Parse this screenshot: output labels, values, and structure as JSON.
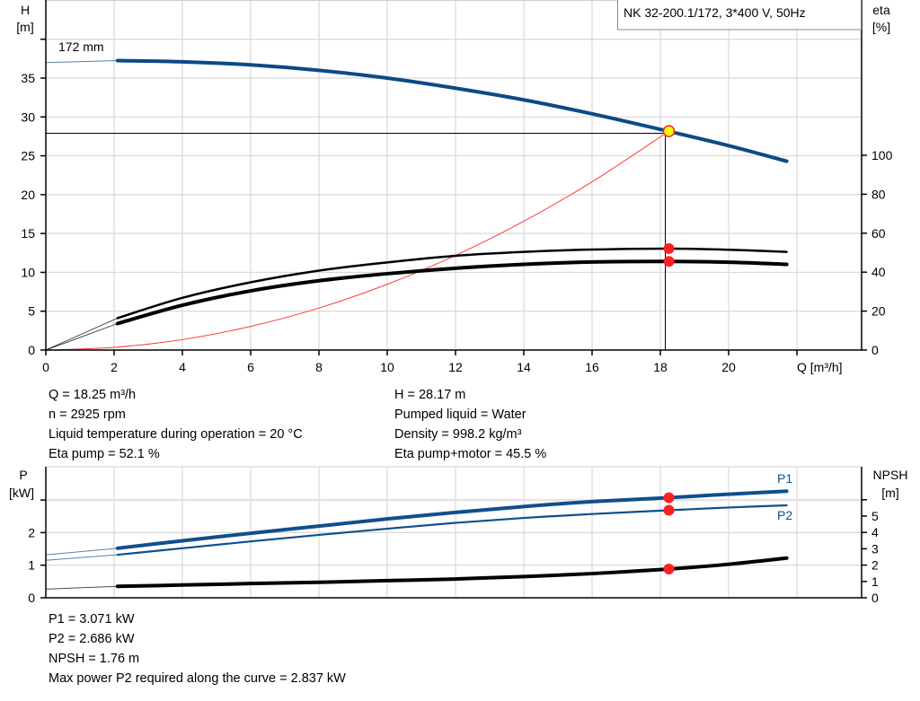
{
  "title_box": "NK 32-200.1/172, 3*400 V, 50Hz",
  "impeller_label": "172 mm",
  "colors": {
    "head": "#0b4a85",
    "power": "#0f4f8c",
    "eta": "#000000",
    "npsh": "#000000",
    "system": "#ff3b3b",
    "duty_point": "#ff2020",
    "duty_point_head_fill": "#ffff00",
    "grid": "#d8d8d8"
  },
  "chart_data": [
    {
      "type": "line",
      "title": "",
      "xlabel": "Q [m³/h]",
      "ylabel": "H\n[m]",
      "y2label": "eta\n[%]",
      "xlim": [
        0,
        24
      ],
      "ylim": [
        0,
        45
      ],
      "y2lim": [
        0,
        103.7
      ],
      "xticks": [
        "0",
        "2",
        "4",
        "6",
        "8",
        "10",
        "12",
        "14",
        "16",
        "18",
        "20"
      ],
      "yticks": [
        "0",
        "5",
        "10",
        "15",
        "20",
        "25",
        "30",
        "35"
      ],
      "y2ticks": [
        "0",
        "20",
        "40",
        "60",
        "80",
        "100"
      ],
      "grid": true,
      "x_axis_label": {
        "Q": "Q [m³/h]"
      },
      "axis_labels": {
        "H": "H",
        "H_unit": "[m]",
        "eta": "eta",
        "eta_unit": "[%]"
      },
      "series": [
        {
          "key": "head",
          "axis": "left",
          "x": [
            0,
            2.1,
            4,
            6,
            8,
            10,
            12,
            14,
            16,
            18,
            20,
            21.7
          ],
          "y": [
            37.0,
            37.25,
            37.1,
            36.7,
            36.0,
            35.0,
            33.7,
            32.2,
            30.4,
            28.4,
            26.3,
            24.3
          ],
          "thin_until": 2.1
        },
        {
          "key": "eta_pump",
          "axis": "right",
          "x": [
            0,
            2.1,
            4,
            6,
            8,
            10,
            12,
            14,
            16,
            18.25,
            20,
            21.7
          ],
          "y": [
            0,
            16.4,
            26.8,
            34.8,
            40.8,
            45.0,
            48.4,
            50.4,
            51.6,
            52.1,
            51.5,
            50.4
          ],
          "thin_until": 2.1
        },
        {
          "key": "eta_pump_motor",
          "axis": "right",
          "x": [
            0,
            2.1,
            4,
            6,
            8,
            10,
            12,
            14,
            16,
            18.25,
            20,
            21.7
          ],
          "y": [
            0,
            13.6,
            23.0,
            30.4,
            35.6,
            39.2,
            42.0,
            44.0,
            45.2,
            45.5,
            45.1,
            44.0
          ],
          "thin_until": 2.1
        },
        {
          "key": "system_curve",
          "axis": "left",
          "x": [
            0,
            2,
            4,
            6,
            8,
            10,
            12,
            14,
            16,
            18.25
          ],
          "y": [
            0,
            0.34,
            1.35,
            3.05,
            5.41,
            8.46,
            12.18,
            16.58,
            21.65,
            28.17
          ]
        }
      ],
      "duty_point": {
        "Q": 18.25,
        "H": 28.17,
        "eta_pump": 52.1,
        "eta_pump_motor": 45.5
      }
    },
    {
      "type": "line",
      "title": "",
      "xlabel": "",
      "ylabel": "P\n[kW]",
      "y2label": "NPSH\n[m]",
      "xlim": [
        0,
        24
      ],
      "ylim": [
        0,
        4
      ],
      "y2lim": [
        0,
        8
      ],
      "yticks": [
        "0",
        "1",
        "2"
      ],
      "y2ticks": [
        "0",
        "1",
        "2",
        "3",
        "4",
        "5"
      ],
      "grid": true,
      "axis_labels": {
        "P": "P",
        "P_unit": "[kW]",
        "NPSH": "NPSH",
        "NPSH_unit": "[m]"
      },
      "series": [
        {
          "key": "P1",
          "name": "P1",
          "axis": "left",
          "x": [
            0,
            2.1,
            4,
            6,
            8,
            10,
            12,
            14,
            16,
            18.25,
            20,
            21.7
          ],
          "y": [
            1.32,
            1.52,
            1.75,
            1.98,
            2.2,
            2.42,
            2.62,
            2.8,
            2.95,
            3.071,
            3.18,
            3.27
          ],
          "thin_until": 2.1
        },
        {
          "key": "P2",
          "name": "P2",
          "axis": "left",
          "x": [
            0,
            2.1,
            4,
            6,
            8,
            10,
            12,
            14,
            16,
            18.25,
            20,
            21.7
          ],
          "y": [
            1.15,
            1.32,
            1.52,
            1.73,
            1.93,
            2.12,
            2.3,
            2.45,
            2.57,
            2.686,
            2.77,
            2.837
          ],
          "thin_until": 2.1
        },
        {
          "key": "NPSH",
          "axis": "right",
          "x": [
            0,
            2.1,
            4,
            6,
            8,
            10,
            12,
            14,
            16,
            18.25,
            20,
            21.7
          ],
          "y": [
            0.53,
            0.7,
            0.78,
            0.87,
            0.95,
            1.05,
            1.15,
            1.3,
            1.48,
            1.76,
            2.05,
            2.43
          ],
          "thin_until": 2.1
        }
      ],
      "duty_point": {
        "Q": 18.25,
        "P1": 3.071,
        "P2": 2.686,
        "NPSH": 1.76
      }
    }
  ],
  "info_left": [
    "Q = 18.25 m³/h",
    "n = 2925 rpm",
    "Liquid temperature during operation = 20 °C",
    "Eta pump = 52.1 %"
  ],
  "info_right": [
    "H = 28.17 m",
    "Pumped liquid = Water",
    "Density = 998.2 kg/m³",
    "Eta pump+motor = 45.5 %"
  ],
  "info_bottom": [
    "P1 = 3.071 kW",
    "P2 = 2.686 kW",
    "NPSH = 1.76 m",
    "Max power P2 required along the curve = 2.837 kW"
  ]
}
